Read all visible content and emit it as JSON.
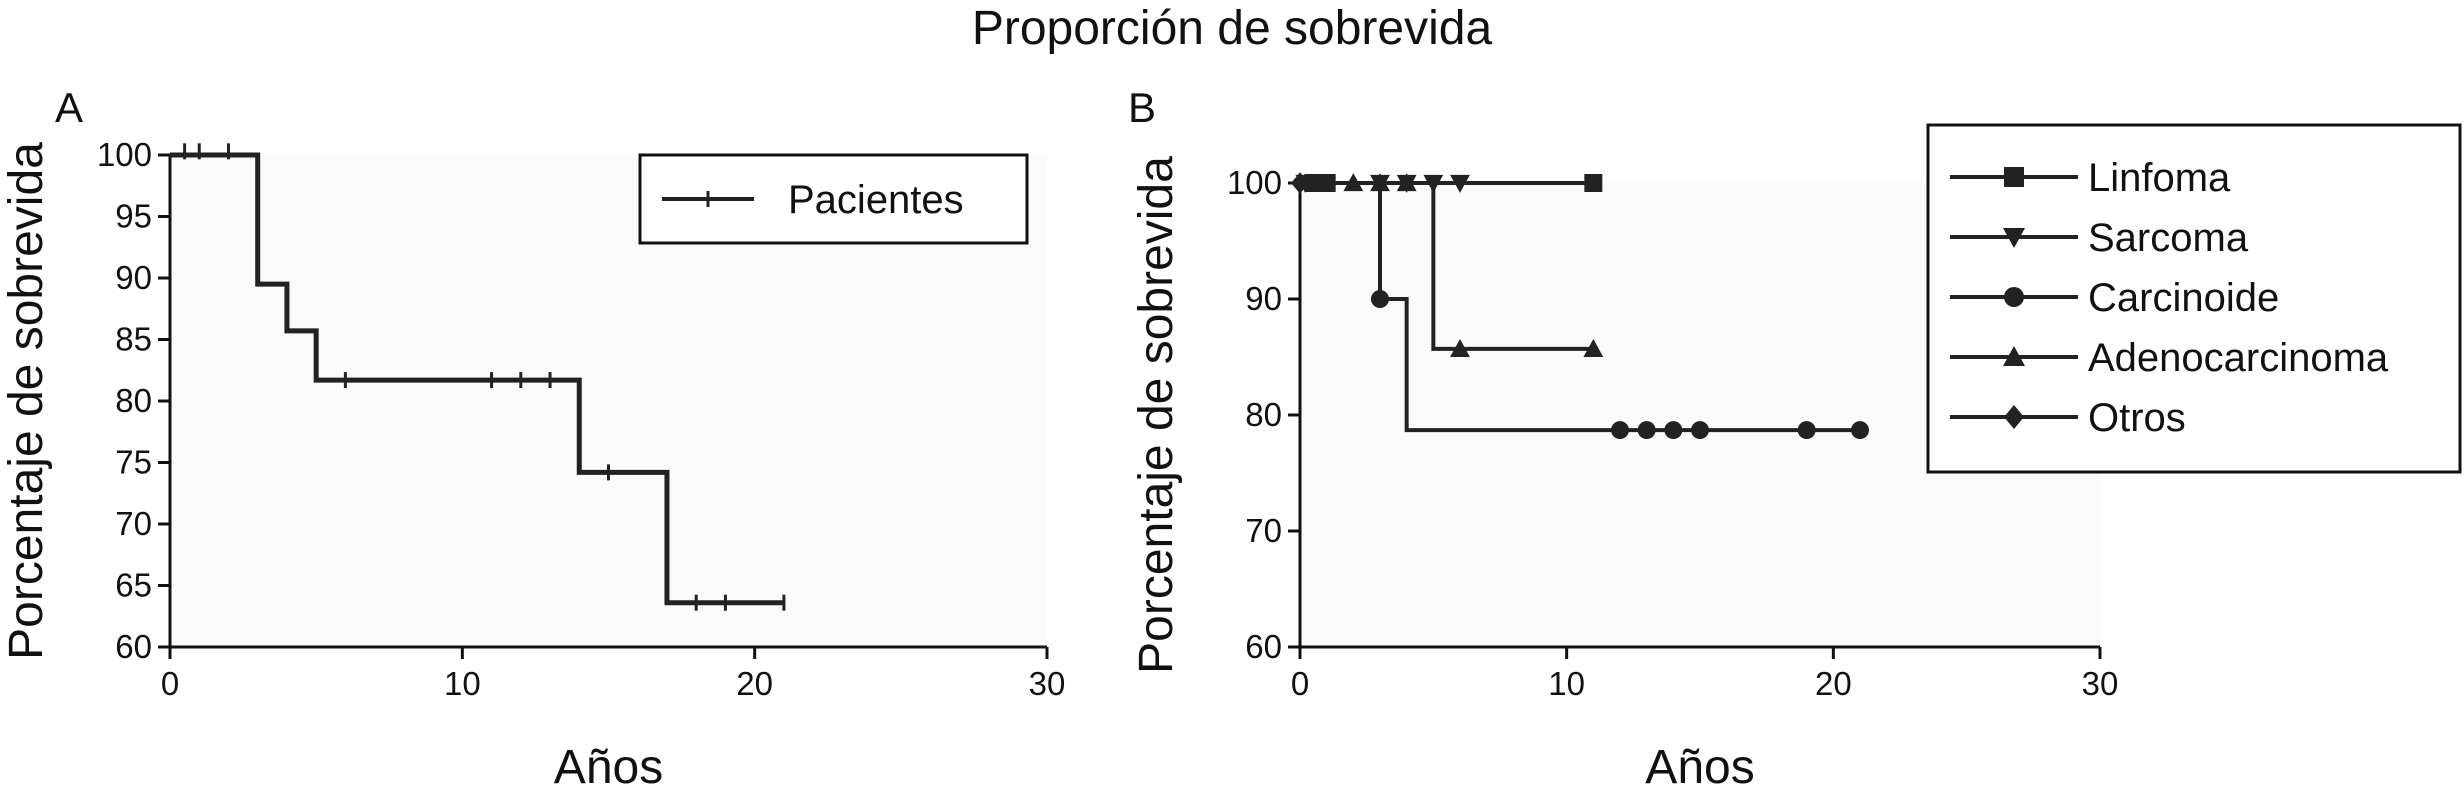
{
  "figure_title": "Proporción de sobrevida",
  "chart_data": [
    {
      "panel": "A",
      "type": "line",
      "step": true,
      "xlabel": "Años",
      "ylabel": "Porcentaje de sobrevida",
      "xlim": [
        0,
        30
      ],
      "ylim": [
        60,
        100
      ],
      "xticks": [
        0,
        10,
        20,
        30
      ],
      "yticks": [
        60,
        65,
        70,
        75,
        80,
        85,
        90,
        95,
        100
      ],
      "grid": false,
      "legend_position": "top-right",
      "series": [
        {
          "name": "Pacientes",
          "marker": "tick",
          "color": "#222222",
          "steps": [
            [
              0,
              100
            ],
            [
              3,
              89.5
            ],
            [
              4,
              85.7
            ],
            [
              5,
              81.7
            ],
            [
              14,
              74.2
            ],
            [
              17,
              63.6
            ]
          ],
          "end_x": 21,
          "censored": [
            [
              0.5,
              100.3
            ],
            [
              1,
              100.3
            ],
            [
              2,
              100.3
            ],
            [
              6,
              81.7
            ],
            [
              11,
              81.7
            ],
            [
              12,
              81.7
            ],
            [
              13,
              81.7
            ],
            [
              15,
              74.2
            ],
            [
              18,
              63.6
            ],
            [
              19,
              63.6
            ],
            [
              21,
              63.6
            ]
          ]
        }
      ]
    },
    {
      "panel": "B",
      "type": "line",
      "step": true,
      "xlabel": "Años",
      "ylabel": "Porcentaje de sobrevida",
      "xlim": [
        0,
        30
      ],
      "ylim": [
        60,
        100
      ],
      "xticks": [
        0,
        10,
        20,
        30
      ],
      "yticks": [
        60,
        70,
        80,
        90,
        100
      ],
      "grid": false,
      "legend_position": "right",
      "series": [
        {
          "name": "Linfoma",
          "marker": "square",
          "color": "#222222",
          "steps": [
            [
              0,
              100
            ]
          ],
          "end_x": 11,
          "points": [
            [
              0.5,
              100
            ],
            [
              1,
              100
            ],
            [
              11,
              100
            ]
          ]
        },
        {
          "name": "Sarcoma",
          "marker": "triangle-down",
          "color": "#222222",
          "steps": [
            [
              0,
              100
            ]
          ],
          "end_x": 6,
          "points": [
            [
              0.2,
              100
            ],
            [
              3,
              100
            ],
            [
              4,
              100
            ],
            [
              5,
              100
            ],
            [
              6,
              100
            ]
          ]
        },
        {
          "name": "Carcinoide",
          "marker": "circle",
          "color": "#222222",
          "steps": [
            [
              0,
              100
            ],
            [
              3,
              90
            ],
            [
              4,
              78.7
            ]
          ],
          "end_x": 21,
          "points": [
            [
              3,
              90
            ],
            [
              12,
              78.7
            ],
            [
              13,
              78.7
            ],
            [
              14,
              78.7
            ],
            [
              15,
              78.7
            ],
            [
              19,
              78.7
            ],
            [
              21,
              78.7
            ]
          ]
        },
        {
          "name": "Adenocarcinoma",
          "marker": "triangle-up",
          "color": "#222222",
          "steps": [
            [
              0,
              100
            ],
            [
              5,
              85.7
            ]
          ],
          "end_x": 11,
          "points": [
            [
              2,
              100
            ],
            [
              3,
              100
            ],
            [
              4,
              100
            ],
            [
              6,
              85.7
            ],
            [
              11,
              85.7
            ]
          ]
        },
        {
          "name": "Otros",
          "marker": "diamond",
          "color": "#222222",
          "steps": [
            [
              0,
              100
            ]
          ],
          "end_x": 0,
          "points": [
            [
              0,
              100
            ]
          ]
        }
      ]
    }
  ]
}
